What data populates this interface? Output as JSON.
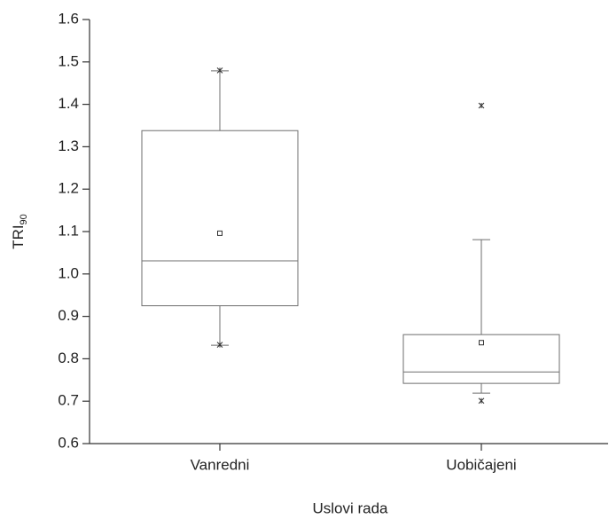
{
  "chart_data": {
    "type": "box",
    "x_label": "Uslovi rada",
    "y_label": {
      "text": "TRI",
      "subscript": "90"
    },
    "categories": [
      "Vanredni",
      "Uobičajeni"
    ],
    "boxes": [
      {
        "whisker_low": 0.832,
        "q1": 0.925,
        "median": 1.031,
        "q3": 1.338,
        "whisker_high": 1.479,
        "mean": 1.096,
        "min": 0.833,
        "max": 1.48
      },
      {
        "whisker_low": 0.719,
        "q1": 0.742,
        "median": 0.769,
        "q3": 0.857,
        "whisker_high": 1.081,
        "mean": 0.838,
        "min": 0.701,
        "max": 1.397
      }
    ],
    "color": "#6e6e6e",
    "ylim": [
      0.6,
      1.6
    ],
    "yticks": [
      0.6,
      0.7,
      0.8,
      0.9,
      {
        "value": 1,
        "label": "1.0"
      },
      1.1,
      1.2,
      1.3,
      1.4,
      1.5,
      1.6
    ]
  }
}
